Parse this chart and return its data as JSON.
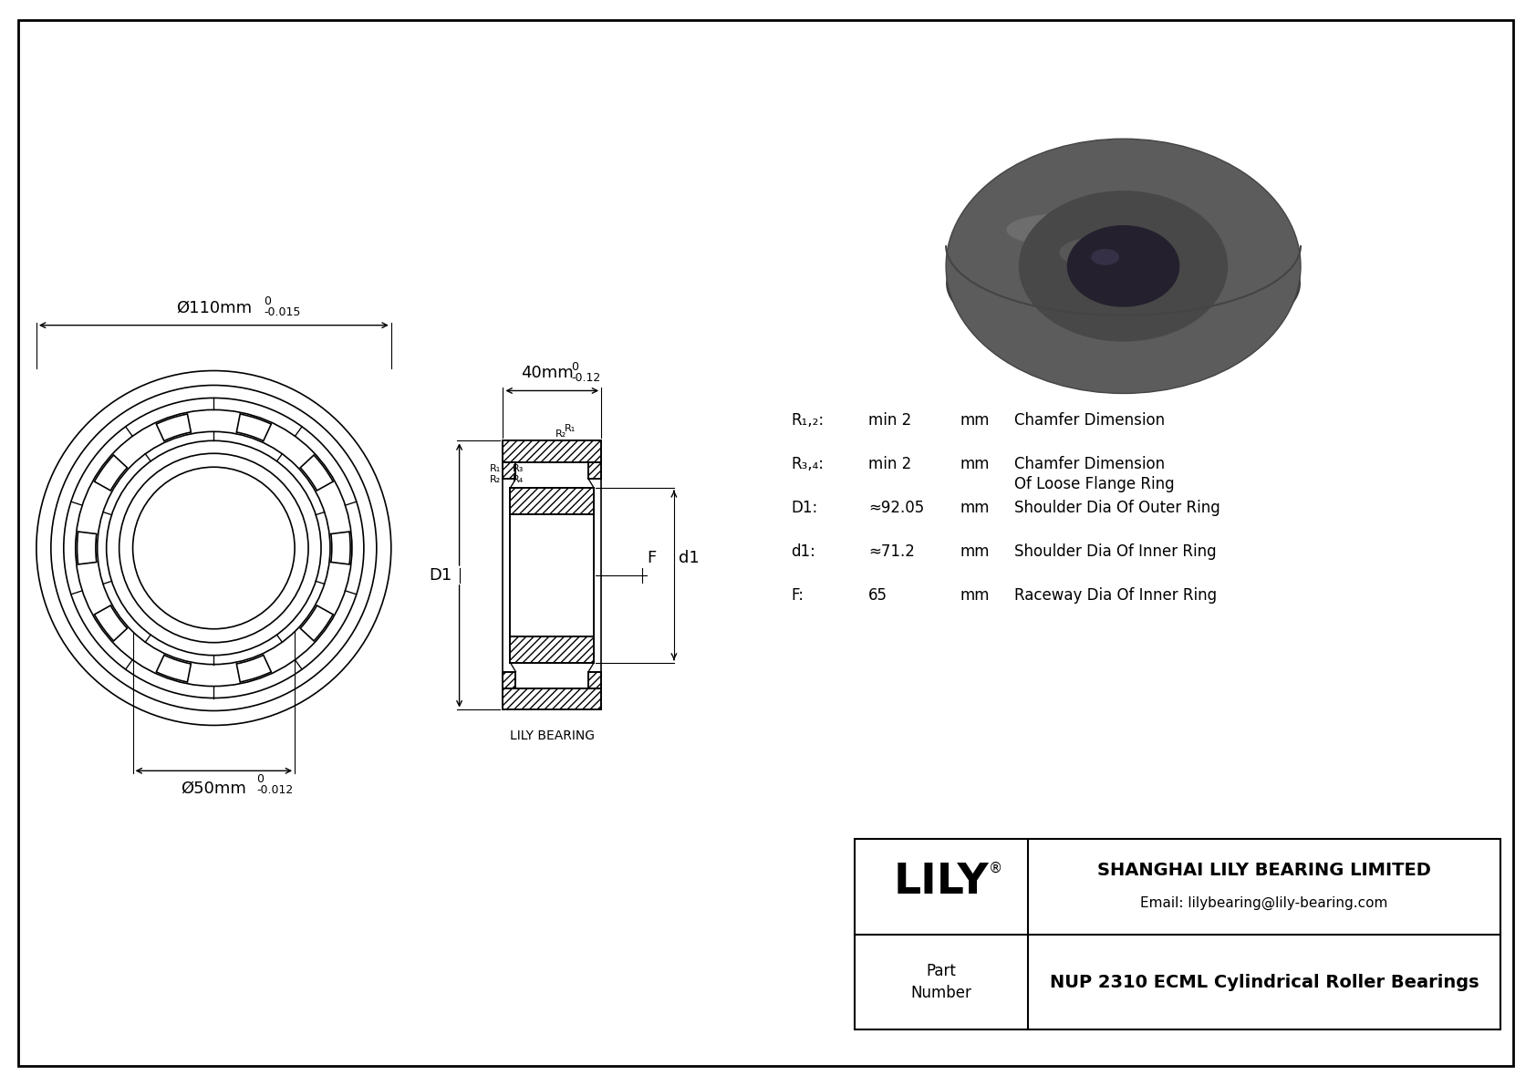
{
  "bg_color": "#ffffff",
  "border_color": "#000000",
  "drawing_color": "#000000",
  "company_name": "SHANGHAI LILY BEARING LIMITED",
  "company_email": "Email: lilybearing@lily-bearing.com",
  "part_label": "Part\nNumber",
  "part_number": "NUP 2310 ECML Cylindrical Roller Bearings",
  "lily_text": "LILY",
  "lily_bearing_text": "LILY BEARING",
  "dim_OD_main": "Ø110mm",
  "dim_ID_main": "Ø50mm",
  "dim_W_main": "40mm",
  "param_R12_sym": "R₁,₂:",
  "param_R12_val": "min 2",
  "param_R12_unit": "mm",
  "param_R12_desc": "Chamfer Dimension",
  "param_R34_sym": "R₃,₄:",
  "param_R34_val": "min 2",
  "param_R34_unit": "mm",
  "param_R34_desc": "Chamfer Dimension",
  "param_R34_desc2": "Of Loose Flange Ring",
  "param_D1_sym": "D1:",
  "param_D1_val": "≈92.05",
  "param_D1_unit": "mm",
  "param_D1_desc": "Shoulder Dia Of Outer Ring",
  "param_d1_sym": "d1:",
  "param_d1_val": "≈71.2",
  "param_d1_unit": "mm",
  "param_d1_desc": "Shoulder Dia Of Inner Ring",
  "param_F_sym": "F:",
  "param_F_val": "65",
  "param_F_unit": "mm",
  "param_F_desc": "Raceway Dia Of Inner Ring",
  "photo_color_outer": "#5a5a5a",
  "photo_color_mid": "#6e6e6e",
  "photo_color_inner": "#4a4a4a",
  "photo_color_bore": "#2a2030",
  "photo_color_highlight": "#888888",
  "photo_color_shadow": "#3a3a3a"
}
